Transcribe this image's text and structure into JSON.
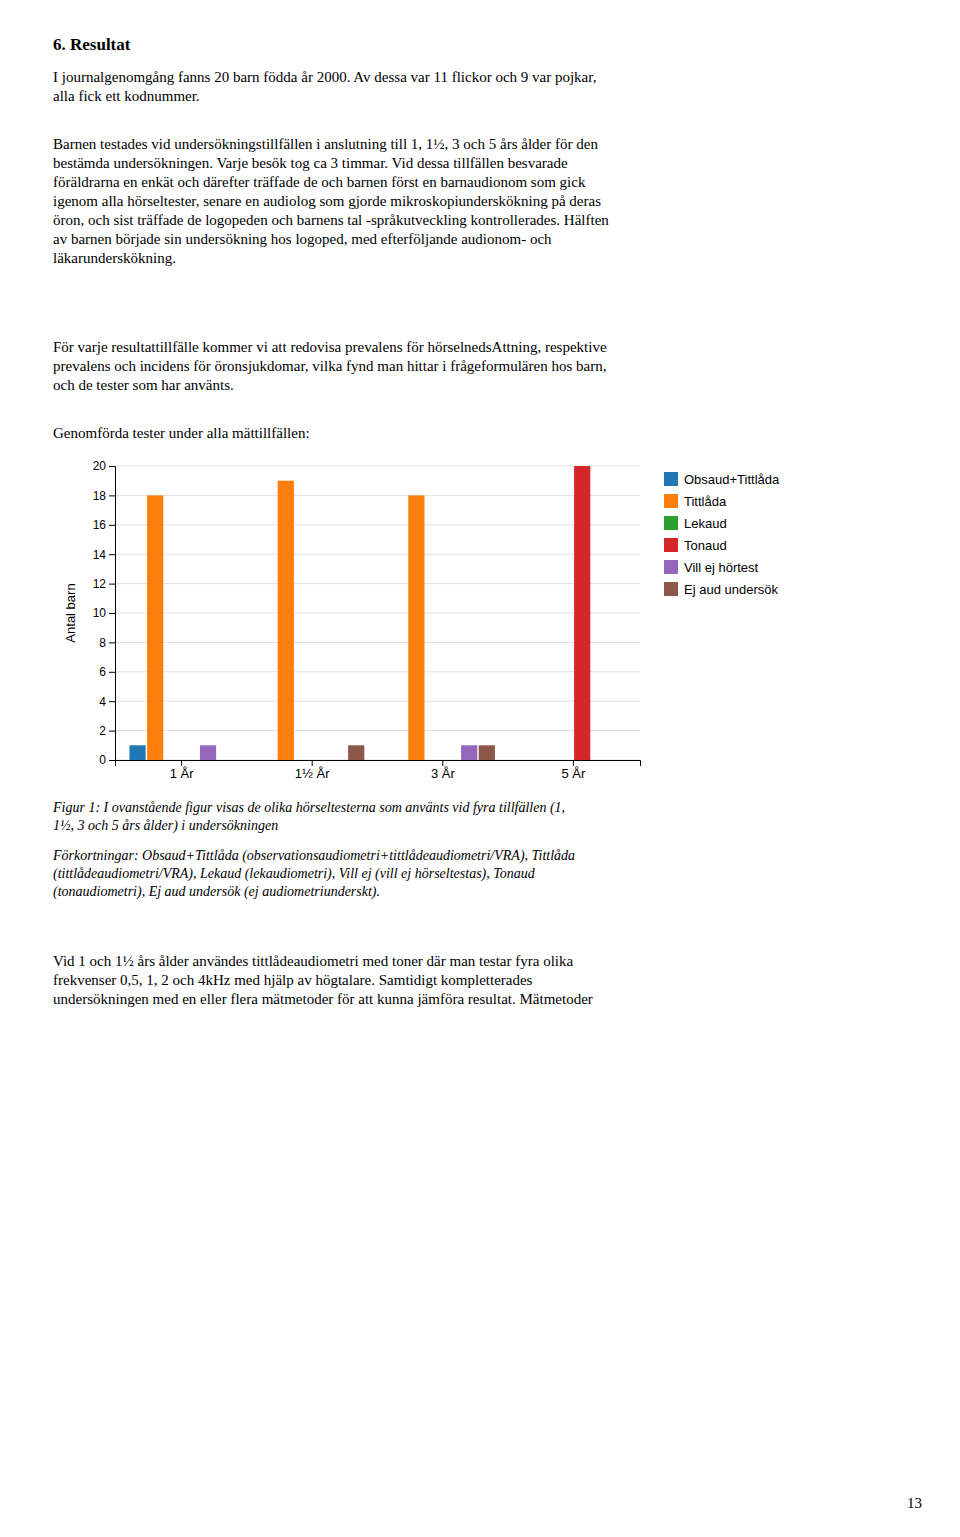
{
  "heading": "6. Resultat",
  "paragraphs": [
    "I journalgenomgång fanns 20 barn födda år 2000. Av dessa var 11 flickor och 9 var pojkar,\nalla fick ett kodnummer.",
    "Barnen testades vid undersökningstillfällen i anslutning till 1, 1½, 3 och 5 års ålder för den\nbestämda undersökningen. Varje besök tog ca 3 timmar. Vid dessa tillfällen besvarade\nföräldrarna en enkät och därefter träffade de och barnen först en barnaudionom som gick\nigenom alla hörseltester, senare en audiolog som gjorde mikroskopiunderskökning på deras\nöron, och sist träffade de logopeden och barnens tal -språkutveckling kontrollerades. Hälften\nav barnen började sin undersökning hos logoped, med efterföljande audionom- och\nläkarunderskökning.",
    "För varje resultattillfälle kommer vi att redovisa prevalens för hörselnedsAttning, respektive\nprevalens och incidens för öronsjukdomar, vilka fynd man hittar i frågeformulären hos barn,\noch de tester som har använts."
  ],
  "chart_data": {
    "type": "bar",
    "title": "Genomförda tester under alla mättillfällen:",
    "categories": [
      "1 År",
      "1½ År",
      "3 År",
      "5 År"
    ],
    "series": [
      {
        "name": "Obsaud+Tittlåda",
        "values": [
          1,
          0,
          0,
          0
        ]
      },
      {
        "name": "Tittlåda",
        "values": [
          18,
          19,
          18,
          0
        ]
      },
      {
        "name": "Lekaud",
        "values": [
          0,
          0,
          0,
          0
        ]
      },
      {
        "name": "Tonaud",
        "values": [
          0,
          0,
          0,
          20
        ]
      },
      {
        "name": "Vill ej hörtest",
        "values": [
          1,
          0,
          1,
          0
        ]
      },
      {
        "name": "Ej aud undersök",
        "values": [
          0,
          1,
          1,
          0
        ]
      }
    ],
    "ylabel": "Antal barn",
    "ylim": [
      0,
      20
    ],
    "yticks": [
      0,
      2,
      4,
      6,
      8,
      10,
      12,
      14,
      16,
      18,
      20
    ],
    "grid": true,
    "legend": "right"
  },
  "caption": "Figur 1: I ovanstående figur visas de olika hörseltesterna som använts vid fyra tillfällen (1,\n1½, 3 och 5 års ålder) i undersökningen",
  "abbreviations": "Förkortningar: Obsaud+Tittlåda (observationsaudiometri+tittlådeaudiometri/VRA), Tittlåda\n(tittlådeaudiometri/VRA), Lekaud (lekaudiometri), Vill ej (vill ej hörseltestas), Tonaud\n(tonaudiometri), Ej aud undersök (ej audiometriunderskt).",
  "closing_text": "Vid 1 och 1½ års ålder användes tittlådeaudiometri med toner där man testar fyra olika\nfrekvenser 0,5, 1, 2 och 4kHz med hjälp av högtalare. Samtidigt kompletterades\nundersökningen med en eller flera mätmetoder för att kunna jämföra resultat. Mätmetoder",
  "page_number": "13"
}
